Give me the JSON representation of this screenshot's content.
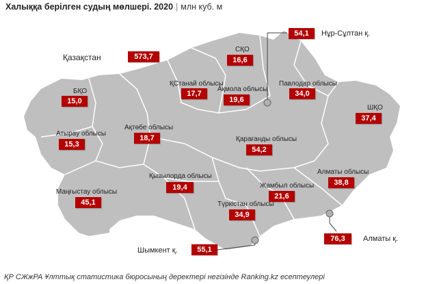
{
  "title": {
    "main": "Халыққа берілген судың мөлшері. 2020",
    "separator": "|",
    "unit": "млн куб. м"
  },
  "total": {
    "label": "Қазақстан",
    "value": "573,7"
  },
  "regions": [
    {
      "name": "СҚО",
      "value": "16,6"
    },
    {
      "name": "ҚСтанай облысы",
      "value": "17,7"
    },
    {
      "name": "Ақмола облысы",
      "value": "19,6"
    },
    {
      "name": "Павлодар облысы",
      "value": "34,0"
    },
    {
      "name": "ШҚО",
      "value": "37,4"
    },
    {
      "name": "БҚО",
      "value": "15,0"
    },
    {
      "name": "Атырау облысы",
      "value": "15,3"
    },
    {
      "name": "Ақтөбе облысы",
      "value": "18,7"
    },
    {
      "name": "Қарағанды облысы",
      "value": "54,2"
    },
    {
      "name": "Қызылорда облысы",
      "value": "19,4"
    },
    {
      "name": "Маңғыстау облысы",
      "value": "45,1"
    },
    {
      "name": "Алматы облысы",
      "value": "38,8"
    },
    {
      "name": "Жамбыл облысы",
      "value": "21,6"
    },
    {
      "name": "Түркістан облысы",
      "value": "34,9"
    }
  ],
  "cities": [
    {
      "name": "Нұр-Сұлтан қ.",
      "value": "54,1"
    },
    {
      "name": "Алматы қ.",
      "value": "76,3"
    },
    {
      "name": "Шымкент қ.",
      "value": "55,1"
    }
  ],
  "footer": "ҚР СЖжРА Ұлттық статистика бюросының деректері негізінде Ranking.kz есептеулері",
  "colors": {
    "map_fill": "#bfbfbf",
    "border": "#ffffff",
    "value_box": "#b40000",
    "leader": "#444444"
  }
}
